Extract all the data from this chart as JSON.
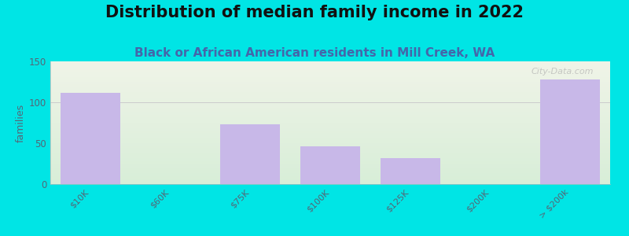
{
  "title": "Distribution of median family income in 2022",
  "subtitle": "Black or African American residents in Mill Creek, WA",
  "categories": [
    "$10K",
    "$60K",
    "$75K",
    "$100K",
    "$125K",
    "$200K",
    "> $200k"
  ],
  "values": [
    112,
    0,
    73,
    46,
    32,
    0,
    128
  ],
  "bar_color": "#c8b8e8",
  "background_outer": "#00e5e5",
  "gradient_top": "#f0f4e8",
  "gradient_bottom": "#d8eed8",
  "ylabel": "families",
  "ylim": [
    0,
    150
  ],
  "yticks": [
    0,
    50,
    100,
    150
  ],
  "title_fontsize": 15,
  "subtitle_fontsize": 11,
  "watermark": "City-Data.com",
  "title_color": "#111111",
  "subtitle_color": "#4466aa",
  "tick_label_color": "#556677",
  "grid_color": "#cccccc"
}
